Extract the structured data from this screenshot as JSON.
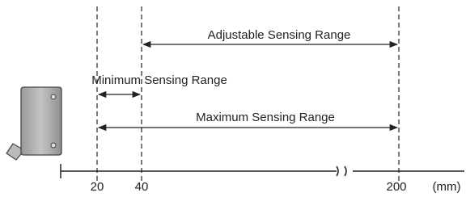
{
  "ranges": [
    {
      "label": "Adjustable Sensing Range"
    },
    {
      "label": "Minimum Sensing Range"
    },
    {
      "label": "Maximum Sensing Range"
    }
  ],
  "axis": {
    "ticks": [
      "20",
      "40",
      "200"
    ],
    "unit": "(mm)"
  }
}
